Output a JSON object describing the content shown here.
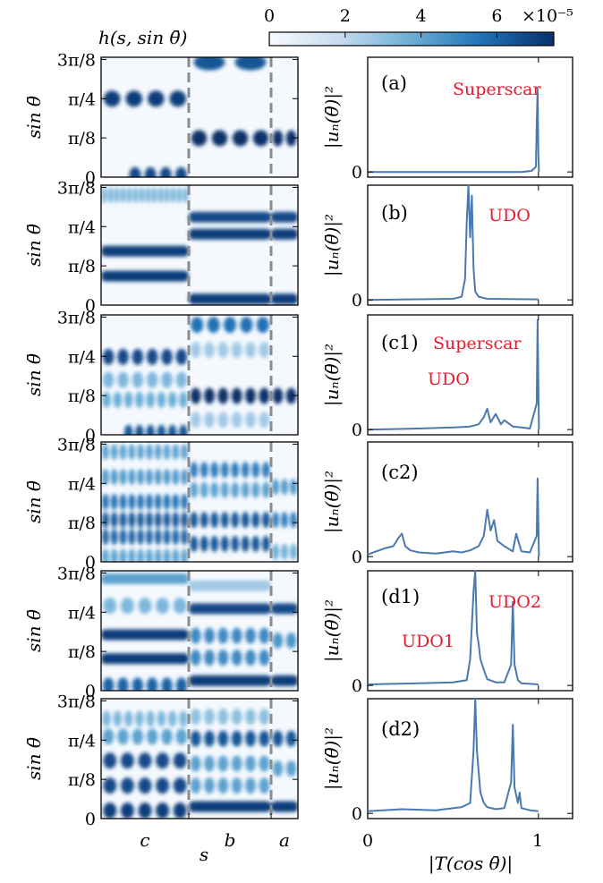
{
  "colorbar": {
    "title": "h(s, sin θ̄)",
    "ticks": [
      "0",
      "2",
      "4",
      "6"
    ],
    "scale_label": "×10⁻⁵",
    "range": [
      0,
      7.5
    ],
    "colors": [
      "#f7fbff",
      "#c6dbef",
      "#6baed6",
      "#2171b5",
      "#08306b"
    ]
  },
  "left_axis": {
    "ylabel": "sin θ̄",
    "yticks": [
      "0",
      "π/8",
      "π/4",
      "3π/8"
    ],
    "xlabel": "s",
    "segments": [
      "c",
      "b",
      "a"
    ]
  },
  "right_axis": {
    "ylabel": "|uₙ(θ̄)|²",
    "ytick": "0",
    "xlabel": "|T(cos θ̄)|",
    "xticks": [
      "0",
      "1"
    ],
    "xlim": [
      0,
      1.2
    ]
  },
  "panels": [
    {
      "label": "(a)",
      "annotations": [
        "Superscar"
      ]
    },
    {
      "label": "(b)",
      "annotations": [
        "UDO"
      ]
    },
    {
      "label": "(c1)",
      "annotations": [
        "Superscar",
        "UDO"
      ]
    },
    {
      "label": "(c2)",
      "annotations": []
    },
    {
      "label": "(d1)",
      "annotations": [
        "UDO2",
        "UDO1"
      ]
    },
    {
      "label": "(d2)",
      "annotations": []
    }
  ],
  "chart_data": [
    {
      "type": "heatmap",
      "panel": "(a)",
      "xlabel": "",
      "ylabel": "sin θ̄",
      "ylim": [
        0,
        1.2
      ],
      "bands": [
        {
          "segment": "c",
          "y": 0.785,
          "lobes": 4,
          "intensity": 0.95
        },
        {
          "segment": "c",
          "y": 0.02,
          "lobes": 4,
          "intensity": 0.9,
          "offset": 0.3
        },
        {
          "segment": "b",
          "y": 1.15,
          "lobes": 2,
          "intensity": 0.85
        },
        {
          "segment": "b",
          "y": 0.39,
          "lobes": 4,
          "intensity": 1.0
        },
        {
          "segment": "a",
          "y": 0.39,
          "lobes": 2,
          "intensity": 1.0
        }
      ]
    },
    {
      "type": "line",
      "panel": "(a)",
      "xlabel": "",
      "ylabel": "|uₙ(θ̄)|²",
      "xlim": [
        0,
        1.2
      ],
      "ylim": [
        -0.05,
        1.1
      ],
      "x": [
        0,
        0.9,
        0.96,
        0.985,
        0.99,
        0.995,
        1.0,
        1.003
      ],
      "y": [
        0,
        0,
        0.01,
        0.05,
        0.45,
        0.8,
        0.15,
        0.0
      ]
    },
    {
      "type": "heatmap",
      "panel": "(b)",
      "xlabel": "",
      "ylabel": "sin θ̄",
      "ylim": [
        0,
        1.2
      ],
      "bands": [
        {
          "segment": "c",
          "y": 1.1,
          "lobes": 14,
          "intensity": 0.45
        },
        {
          "segment": "c",
          "y": 0.54,
          "lobes": 0,
          "intensity": 0.95
        },
        {
          "segment": "c",
          "y": 0.29,
          "lobes": 0,
          "intensity": 0.95
        },
        {
          "segment": "b",
          "y": 0.88,
          "lobes": 0,
          "intensity": 0.9
        },
        {
          "segment": "b",
          "y": 0.71,
          "lobes": 0,
          "intensity": 0.95
        },
        {
          "segment": "b",
          "y": 0.06,
          "lobes": 0,
          "intensity": 0.95
        },
        {
          "segment": "a",
          "y": 0.88,
          "lobes": 0,
          "intensity": 0.9
        },
        {
          "segment": "a",
          "y": 0.71,
          "lobes": 0,
          "intensity": 0.95
        },
        {
          "segment": "a",
          "y": 0.06,
          "lobes": 0,
          "intensity": 0.95
        }
      ]
    },
    {
      "type": "line",
      "panel": "(b)",
      "xlabel": "",
      "ylabel": "|uₙ(θ̄)|²",
      "xlim": [
        0,
        1.2
      ],
      "ylim": [
        -0.05,
        1.1
      ],
      "x": [
        0,
        0.5,
        0.55,
        0.57,
        0.58,
        0.59,
        0.6,
        0.61,
        0.62,
        0.63,
        0.65,
        0.7,
        1.0
      ],
      "y": [
        0,
        0.01,
        0.03,
        0.2,
        0.75,
        1.1,
        0.6,
        1.0,
        0.3,
        0.08,
        0.03,
        0.01,
        0.005
      ]
    },
    {
      "type": "heatmap",
      "panel": "(c1)",
      "xlabel": "",
      "ylabel": "sin θ̄",
      "ylim": [
        0,
        1.2
      ],
      "bands": [
        {
          "segment": "c",
          "y": 0.78,
          "lobes": 6,
          "intensity": 0.9
        },
        {
          "segment": "c",
          "y": 0.55,
          "lobes": 6,
          "intensity": 0.45
        },
        {
          "segment": "c",
          "y": 0.35,
          "lobes": 8,
          "intensity": 0.5
        },
        {
          "segment": "c",
          "y": 0.02,
          "lobes": 6,
          "intensity": 0.85,
          "offset": 0.25
        },
        {
          "segment": "b",
          "y": 1.1,
          "lobes": 5,
          "intensity": 0.75
        },
        {
          "segment": "b",
          "y": 0.85,
          "lobes": 6,
          "intensity": 0.35
        },
        {
          "segment": "b",
          "y": 0.39,
          "lobes": 6,
          "intensity": 1.0
        },
        {
          "segment": "b",
          "y": 0.15,
          "lobes": 6,
          "intensity": 0.35
        },
        {
          "segment": "a",
          "y": 0.39,
          "lobes": 2,
          "intensity": 1.0
        }
      ]
    },
    {
      "type": "line",
      "panel": "(c1)",
      "xlabel": "",
      "ylabel": "|uₙ(θ̄)|²",
      "xlim": [
        0,
        1.2
      ],
      "ylim": [
        -0.05,
        1.1
      ],
      "x": [
        0,
        0.3,
        0.5,
        0.6,
        0.65,
        0.68,
        0.7,
        0.72,
        0.75,
        0.78,
        0.8,
        0.85,
        0.9,
        0.95,
        0.99,
        0.995,
        1.0,
        1.003
      ],
      "y": [
        0,
        0.01,
        0.02,
        0.03,
        0.05,
        0.12,
        0.2,
        0.07,
        0.15,
        0.05,
        0.09,
        0.03,
        0.02,
        0.01,
        0.25,
        1.05,
        0.4,
        0.0
      ]
    },
    {
      "type": "heatmap",
      "panel": "(c2)",
      "xlabel": "",
      "ylabel": "sin θ̄",
      "ylim": [
        0,
        1.2
      ],
      "bands": [
        {
          "segment": "c",
          "y": 1.1,
          "lobes": 10,
          "intensity": 0.55
        },
        {
          "segment": "c",
          "y": 0.85,
          "lobes": 10,
          "intensity": 0.6
        },
        {
          "segment": "c",
          "y": 0.6,
          "lobes": 10,
          "intensity": 0.75
        },
        {
          "segment": "c",
          "y": 0.42,
          "lobes": 10,
          "intensity": 0.85
        },
        {
          "segment": "c",
          "y": 0.25,
          "lobes": 10,
          "intensity": 0.8
        },
        {
          "segment": "c",
          "y": 0.05,
          "lobes": 10,
          "intensity": 0.55
        },
        {
          "segment": "b",
          "y": 0.92,
          "lobes": 8,
          "intensity": 0.7
        },
        {
          "segment": "b",
          "y": 0.72,
          "lobes": 8,
          "intensity": 0.55
        },
        {
          "segment": "b",
          "y": 0.42,
          "lobes": 8,
          "intensity": 0.85
        },
        {
          "segment": "b",
          "y": 0.18,
          "lobes": 8,
          "intensity": 0.85
        },
        {
          "segment": "a",
          "y": 0.75,
          "lobes": 3,
          "intensity": 0.6
        },
        {
          "segment": "a",
          "y": 0.42,
          "lobes": 3,
          "intensity": 0.7
        },
        {
          "segment": "a",
          "y": 0.1,
          "lobes": 3,
          "intensity": 0.5
        }
      ]
    },
    {
      "type": "line",
      "panel": "(c2)",
      "xlabel": "",
      "ylabel": "|uₙ(θ̄)|²",
      "xlim": [
        0,
        1.2
      ],
      "ylim": [
        -0.05,
        1.1
      ],
      "x": [
        0,
        0.05,
        0.1,
        0.15,
        0.18,
        0.2,
        0.22,
        0.25,
        0.3,
        0.4,
        0.5,
        0.55,
        0.6,
        0.65,
        0.68,
        0.7,
        0.72,
        0.74,
        0.76,
        0.8,
        0.85,
        0.87,
        0.9,
        0.95,
        0.99,
        0.995,
        1.0,
        1.003
      ],
      "y": [
        0.02,
        0.05,
        0.08,
        0.1,
        0.18,
        0.22,
        0.1,
        0.06,
        0.04,
        0.03,
        0.05,
        0.04,
        0.06,
        0.1,
        0.2,
        0.45,
        0.25,
        0.35,
        0.15,
        0.1,
        0.05,
        0.22,
        0.05,
        0.04,
        0.2,
        0.75,
        0.3,
        0.0
      ]
    },
    {
      "type": "heatmap",
      "panel": "(d1)",
      "xlabel": "",
      "ylabel": "sin θ̄",
      "ylim": [
        0,
        1.2
      ],
      "bands": [
        {
          "segment": "c",
          "y": 1.12,
          "lobes": 0,
          "intensity": 0.55
        },
        {
          "segment": "c",
          "y": 0.85,
          "lobes": 5,
          "intensity": 0.45
        },
        {
          "segment": "c",
          "y": 0.56,
          "lobes": 0,
          "intensity": 0.95
        },
        {
          "segment": "c",
          "y": 0.32,
          "lobes": 0,
          "intensity": 0.95
        },
        {
          "segment": "c",
          "y": 0.05,
          "lobes": 6,
          "intensity": 0.8
        },
        {
          "segment": "b",
          "y": 1.05,
          "lobes": 0,
          "intensity": 0.35
        },
        {
          "segment": "b",
          "y": 0.82,
          "lobes": 0,
          "intensity": 0.9
        },
        {
          "segment": "b",
          "y": 0.55,
          "lobes": 6,
          "intensity": 0.65
        },
        {
          "segment": "b",
          "y": 0.33,
          "lobes": 6,
          "intensity": 0.65
        },
        {
          "segment": "b",
          "y": 0.1,
          "lobes": 0,
          "intensity": 0.95
        },
        {
          "segment": "a",
          "y": 0.82,
          "lobes": 0,
          "intensity": 0.9
        },
        {
          "segment": "a",
          "y": 0.5,
          "lobes": 2,
          "intensity": 0.6
        },
        {
          "segment": "a",
          "y": 0.1,
          "lobes": 0,
          "intensity": 0.95
        }
      ]
    },
    {
      "type": "line",
      "panel": "(d1)",
      "xlabel": "",
      "ylabel": "|uₙ(θ̄)|²",
      "xlim": [
        0,
        1.2
      ],
      "ylim": [
        -0.05,
        1.1
      ],
      "x": [
        0,
        0.3,
        0.5,
        0.58,
        0.6,
        0.62,
        0.63,
        0.64,
        0.65,
        0.66,
        0.68,
        0.7,
        0.75,
        0.8,
        0.84,
        0.85,
        0.86,
        0.88,
        0.9,
        1.0
      ],
      "y": [
        0.01,
        0.02,
        0.03,
        0.05,
        0.25,
        0.9,
        1.1,
        0.5,
        0.4,
        0.25,
        0.15,
        0.06,
        0.03,
        0.03,
        0.2,
        0.8,
        0.2,
        0.05,
        0.02,
        0.01
      ]
    },
    {
      "type": "heatmap",
      "panel": "(d2)",
      "xlabel": "",
      "ylabel": "sin θ̄",
      "ylim": [
        0,
        1.2
      ],
      "bands": [
        {
          "segment": "c",
          "y": 1.0,
          "lobes": 8,
          "intensity": 0.45
        },
        {
          "segment": "c",
          "y": 0.82,
          "lobes": 6,
          "intensity": 0.55
        },
        {
          "segment": "c",
          "y": 0.58,
          "lobes": 5,
          "intensity": 0.9
        },
        {
          "segment": "c",
          "y": 0.33,
          "lobes": 5,
          "intensity": 0.9
        },
        {
          "segment": "c",
          "y": 0.08,
          "lobes": 5,
          "intensity": 0.95
        },
        {
          "segment": "b",
          "y": 1.02,
          "lobes": 6,
          "intensity": 0.4
        },
        {
          "segment": "b",
          "y": 0.8,
          "lobes": 6,
          "intensity": 0.85
        },
        {
          "segment": "b",
          "y": 0.55,
          "lobes": 6,
          "intensity": 0.55
        },
        {
          "segment": "b",
          "y": 0.33,
          "lobes": 6,
          "intensity": 0.55
        },
        {
          "segment": "b",
          "y": 0.12,
          "lobes": 0,
          "intensity": 0.95
        },
        {
          "segment": "a",
          "y": 0.8,
          "lobes": 2,
          "intensity": 0.85
        },
        {
          "segment": "a",
          "y": 0.5,
          "lobes": 2,
          "intensity": 0.55
        },
        {
          "segment": "a",
          "y": 0.12,
          "lobes": 0,
          "intensity": 0.95
        }
      ]
    },
    {
      "type": "line",
      "panel": "(d2)",
      "xlabel": "",
      "ylabel": "|uₙ(θ̄)|²",
      "xlim": [
        0,
        1.2
      ],
      "ylim": [
        -0.05,
        1.1
      ],
      "x": [
        0,
        0.2,
        0.4,
        0.55,
        0.6,
        0.62,
        0.63,
        0.64,
        0.65,
        0.66,
        0.68,
        0.7,
        0.75,
        0.8,
        0.84,
        0.85,
        0.86,
        0.88,
        0.89,
        0.9,
        0.95,
        1.0
      ],
      "y": [
        0.02,
        0.04,
        0.03,
        0.06,
        0.1,
        0.6,
        1.1,
        0.6,
        0.4,
        0.2,
        0.1,
        0.06,
        0.04,
        0.05,
        0.3,
        0.85,
        0.25,
        0.1,
        0.2,
        0.05,
        0.03,
        0.02
      ]
    }
  ]
}
